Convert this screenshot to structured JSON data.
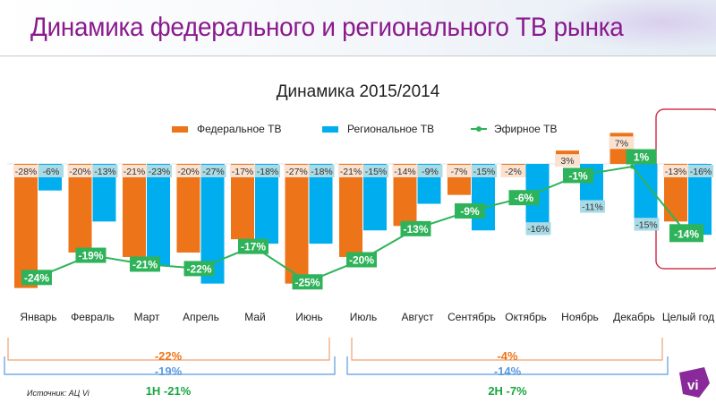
{
  "page": {
    "title": "Динамика федерального и регионального ТВ рынка",
    "source": "Источник: АЦ Vi",
    "logo_text": "vi"
  },
  "colors": {
    "federal": "#ed7418",
    "federal_label_bg": "#fbe2d0",
    "regional": "#00aeef",
    "regional_label_bg": "#a8dbe6",
    "broadcast": "#2fb35a",
    "title": "#8a1a8e",
    "highlight_box": "#d0364f",
    "bracket_blue": "#5b9be0",
    "logo": "#8a2a9a"
  },
  "chart_data": {
    "type": "bar",
    "title": "Динамика 2015/2014",
    "xlabel": "",
    "ylabel": "",
    "ylim": [
      -30,
      10
    ],
    "grid": false,
    "legend_position": "top",
    "categories": [
      "Январь",
      "Февраль",
      "Март",
      "Апрель",
      "Май",
      "Июнь",
      "Июль",
      "Август",
      "Сентябрь",
      "Октябрь",
      "Ноябрь",
      "Декабрь",
      "Целый год"
    ],
    "series": [
      {
        "name": "Федеральное ТВ",
        "kind": "bar",
        "values": [
          -28,
          -20,
          -21,
          -20,
          -17,
          -27,
          -21,
          -14,
          -7,
          -2,
          3,
          7,
          -13
        ]
      },
      {
        "name": "Региональное ТВ",
        "kind": "bar",
        "values": [
          -6,
          -13,
          -23,
          -27,
          -18,
          -18,
          -15,
          -9,
          -15,
          -16,
          -11,
          -15,
          -16
        ]
      },
      {
        "name": "Эфирное ТВ",
        "kind": "line",
        "values": [
          -24,
          -19,
          -21,
          -22,
          -17,
          -25,
          -20,
          -13,
          -9,
          -6,
          -1,
          1,
          -14
        ]
      }
    ],
    "highlighted_category": "Целый год",
    "period_summaries": [
      {
        "period": "1H",
        "federal": "-22%",
        "regional": "-19%",
        "broadcast_label": "1H  -21%"
      },
      {
        "period": "2H",
        "federal": "-4%",
        "regional": "-14%",
        "broadcast_label": "2H  -7%"
      }
    ]
  }
}
